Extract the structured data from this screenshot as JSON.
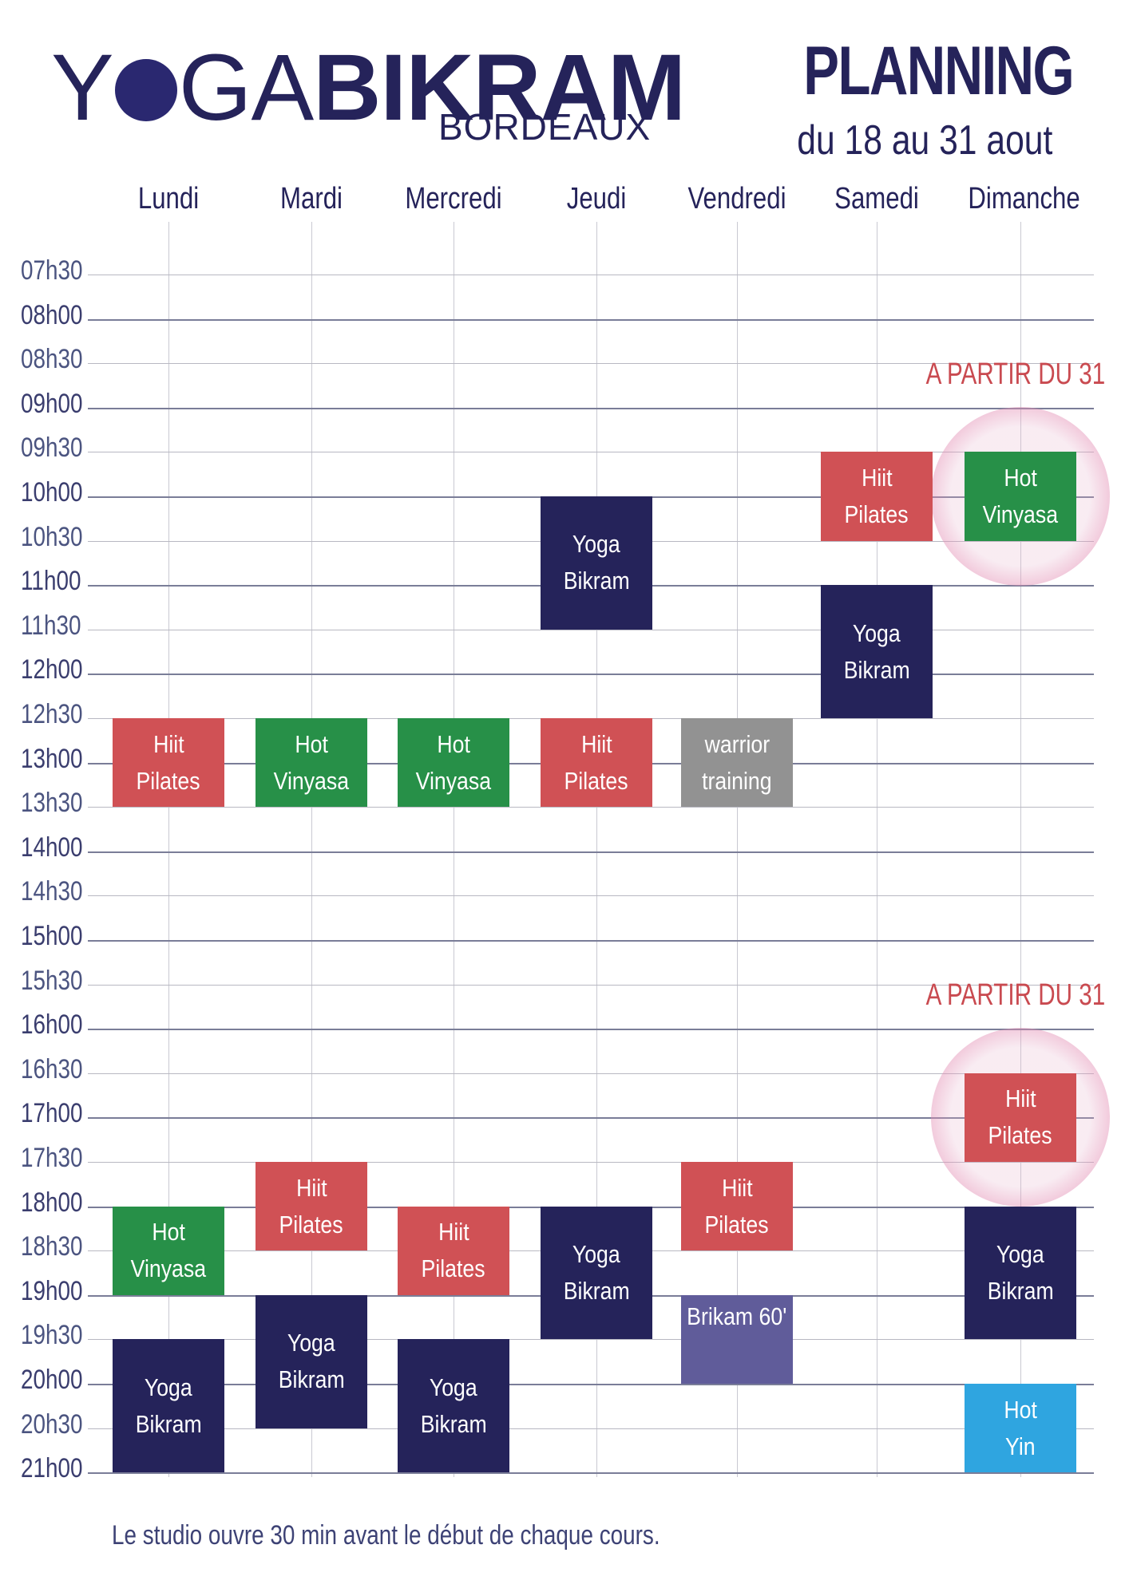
{
  "header": {
    "logo_word_1a": "Y",
    "logo_word_1b": "GA",
    "logo_word_2": "BIKRAM",
    "logo_sub": "BORDEAUX",
    "title": "PLANNING",
    "dates": "du 18 au  31 aout"
  },
  "days": [
    "Lundi",
    "Mardi",
    "Mercredi",
    "Jeudi",
    "Vendredi",
    "Samedi",
    "Dimanche"
  ],
  "times": [
    "07h30",
    "08h00",
    "08h30",
    "09h00",
    "09h30",
    "10h00",
    "10h30",
    "11h00",
    "11h30",
    "12h00",
    "12h30",
    "13h00",
    "13h30",
    "14h00",
    "14h30",
    "15h00",
    "15h30",
    "16h00",
    "16h30",
    "17h00",
    "17h30",
    "18h00",
    "18h30",
    "19h00",
    "19h30",
    "20h00",
    "20h30",
    "21h00"
  ],
  "notes": [
    "A PARTIR DU 31",
    "A PARTIR DU 31"
  ],
  "classes": [
    {
      "day": "Lundi",
      "start": "12h30",
      "end": "13h30",
      "lines": [
        "Hiit",
        "Pilates"
      ],
      "color": "#d05155"
    },
    {
      "day": "Lundi",
      "start": "18h00",
      "end": "19h00",
      "lines": [
        "Hot",
        "Vinyasa"
      ],
      "color": "#279048"
    },
    {
      "day": "Lundi",
      "start": "19h30",
      "end": "21h00",
      "lines": [
        "Yoga",
        "Bikram"
      ],
      "color": "#25235a"
    },
    {
      "day": "Mardi",
      "start": "12h30",
      "end": "13h30",
      "lines": [
        "Hot",
        "Vinyasa"
      ],
      "color": "#279048"
    },
    {
      "day": "Mardi",
      "start": "17h30",
      "end": "18h30",
      "lines": [
        "Hiit",
        "Pilates"
      ],
      "color": "#d05155"
    },
    {
      "day": "Mardi",
      "start": "19h00",
      "end": "20h30",
      "lines": [
        "Yoga",
        "Bikram"
      ],
      "color": "#25235a"
    },
    {
      "day": "Mercredi",
      "start": "12h30",
      "end": "13h30",
      "lines": [
        "Hot",
        "Vinyasa"
      ],
      "color": "#279048"
    },
    {
      "day": "Mercredi",
      "start": "18h00",
      "end": "19h00",
      "lines": [
        "Hiit",
        "Pilates"
      ],
      "color": "#d05155"
    },
    {
      "day": "Mercredi",
      "start": "19h30",
      "end": "21h00",
      "lines": [
        "Yoga",
        "Bikram"
      ],
      "color": "#25235a"
    },
    {
      "day": "Jeudi",
      "start": "10h00",
      "end": "11h30",
      "lines": [
        "Yoga",
        "Bikram"
      ],
      "color": "#25235a"
    },
    {
      "day": "Jeudi",
      "start": "12h30",
      "end": "13h30",
      "lines": [
        "Hiit",
        "Pilates"
      ],
      "color": "#d05155"
    },
    {
      "day": "Jeudi",
      "start": "18h00",
      "end": "19h30",
      "lines": [
        "Yoga",
        "Bikram"
      ],
      "color": "#25235a"
    },
    {
      "day": "Vendredi",
      "start": "12h30",
      "end": "13h30",
      "lines": [
        "warrior",
        "training"
      ],
      "color": "#929292"
    },
    {
      "day": "Vendredi",
      "start": "17h30",
      "end": "18h30",
      "lines": [
        "Hiit",
        "Pilates"
      ],
      "color": "#d05155"
    },
    {
      "day": "Vendredi",
      "start": "19h00",
      "end": "20h00",
      "lines": [
        "Brikam 60'"
      ],
      "color": "#605c9a",
      "align": "top"
    },
    {
      "day": "Samedi",
      "start": "09h30",
      "end": "10h30",
      "lines": [
        "Hiit",
        "Pilates"
      ],
      "color": "#d05155"
    },
    {
      "day": "Samedi",
      "start": "11h00",
      "end": "12h30",
      "lines": [
        "Yoga",
        "Bikram"
      ],
      "color": "#25235a"
    },
    {
      "day": "Dimanche",
      "start": "09h30",
      "end": "10h30",
      "lines": [
        "Hot",
        "Vinyasa"
      ],
      "color": "#279048",
      "halo": true
    },
    {
      "day": "Dimanche",
      "start": "16h30",
      "end": "17h30",
      "lines": [
        "Hiit",
        "Pilates"
      ],
      "color": "#d05155",
      "halo": true
    },
    {
      "day": "Dimanche",
      "start": "18h00",
      "end": "19h30",
      "lines": [
        "Yoga",
        "Bikram"
      ],
      "color": "#25235a"
    },
    {
      "day": "Dimanche",
      "start": "20h00",
      "end": "21h00",
      "lines": [
        "Hot",
        "Yin"
      ],
      "color": "#2fa5e0"
    }
  ],
  "footer": "Le studio ouvre 30 min avant le début de chaque cours."
}
